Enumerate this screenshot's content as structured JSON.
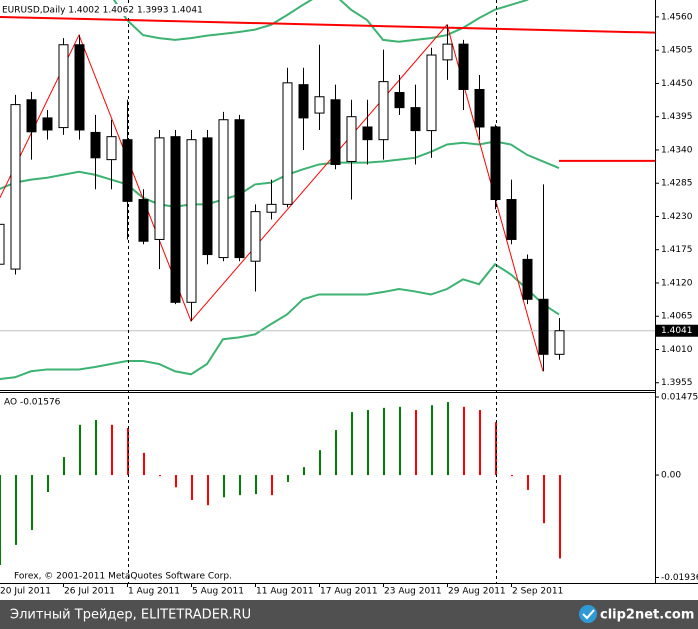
{
  "chart_data": [
    {
      "type": "candlestick",
      "title": "EURUSD,Daily  1.4002 1.4062 1.3993 1.4041",
      "open": [
        1.4151,
        1.4143,
        1.4423,
        1.4393,
        1.4377,
        1.4514,
        1.4369,
        1.4324,
        1.4357,
        1.4258,
        1.4192,
        1.4362,
        1.4088,
        1.436,
        1.4162,
        1.439,
        1.4156,
        1.4237,
        1.425,
        1.4448,
        1.4401,
        1.4423,
        1.4321,
        1.4378,
        1.4357,
        1.4435,
        1.441,
        1.4372,
        1.4489,
        1.4515,
        1.444,
        1.4378,
        1.4258,
        1.4159,
        1.4093,
        1.4002
      ],
      "high": [
        1.4242,
        1.4431,
        1.4436,
        1.4406,
        1.4525,
        1.453,
        1.4398,
        1.439,
        1.4423,
        1.4275,
        1.4373,
        1.4373,
        1.4373,
        1.4373,
        1.4403,
        1.4398,
        1.425,
        1.4291,
        1.4476,
        1.4476,
        1.4514,
        1.4448,
        1.4423,
        1.4423,
        1.4506,
        1.4464,
        1.4448,
        1.4509,
        1.4547,
        1.4522,
        1.4464,
        1.4382,
        1.4291,
        1.4167,
        1.4283,
        1.4062
      ],
      "low": [
        1.4126,
        1.4134,
        1.4324,
        1.4357,
        1.4365,
        1.4357,
        1.4275,
        1.4275,
        1.4192,
        1.4184,
        1.4143,
        1.4085,
        1.4057,
        1.4151,
        1.4156,
        1.4156,
        1.4106,
        1.4225,
        1.4245,
        1.434,
        1.4373,
        1.4308,
        1.4258,
        1.4316,
        1.4324,
        1.4398,
        1.4316,
        1.4327,
        1.4456,
        1.4406,
        1.4357,
        1.4242,
        1.4184,
        1.4085,
        1.3974,
        1.3993
      ],
      "close": [
        1.4217,
        1.4415,
        1.437,
        1.4373,
        1.4514,
        1.4373,
        1.4327,
        1.4362,
        1.4255,
        1.4189,
        1.436,
        1.4088,
        1.4357,
        1.4167,
        1.439,
        1.4162,
        1.4238,
        1.425,
        1.4451,
        1.4393,
        1.4428,
        1.4316,
        1.4395,
        1.4357,
        1.4453,
        1.441,
        1.4372,
        1.4497,
        1.4515,
        1.444,
        1.4378,
        1.4258,
        1.4192,
        1.4093,
        1.4002,
        1.4041
      ],
      "up_color": "#ffffff",
      "down_color": "#000000",
      "bands": [
        {
          "color": "#3cb371",
          "values": [
            1.4654,
            1.4654,
            1.4646,
            1.4638,
            1.4629,
            1.4621,
            1.4613,
            1.4596,
            1.4555,
            1.453,
            1.4525,
            1.4522,
            1.4525,
            1.4529,
            1.4532,
            1.4535,
            1.4539,
            1.4547,
            1.4563,
            1.458,
            1.4596,
            1.4596,
            1.4572,
            1.4555,
            1.4522,
            1.4519,
            1.4522,
            1.4525,
            1.453,
            1.4542,
            1.4558,
            1.4572,
            1.458,
            1.4588,
            1.4605,
            1.4613
          ]
        },
        {
          "color": "#3cb371",
          "values": [
            1.4275,
            1.4286,
            1.4291,
            1.4294,
            1.4299,
            1.4304,
            1.4299,
            1.4291,
            1.4283,
            1.4261,
            1.425,
            1.4246,
            1.425,
            1.425,
            1.4258,
            1.4266,
            1.4283,
            1.4286,
            1.4299,
            1.4308,
            1.4316,
            1.4319,
            1.4319,
            1.4319,
            1.4321,
            1.4324,
            1.4327,
            1.4337,
            1.4349,
            1.4352,
            1.4349,
            1.4354,
            1.4349,
            1.4332,
            1.4321,
            1.431
          ]
        },
        {
          "color": "#3cb371",
          "values": [
            1.3961,
            1.3964,
            1.3974,
            1.3977,
            1.3977,
            1.3977,
            1.3981,
            1.3986,
            1.3991,
            1.3991,
            1.3986,
            1.3974,
            1.3969,
            1.3986,
            1.4027,
            1.403,
            1.4035,
            1.4052,
            1.4068,
            1.4093,
            1.4101,
            1.4101,
            1.4101,
            1.4101,
            1.4105,
            1.411,
            1.4106,
            1.4101,
            1.411,
            1.4126,
            1.4118,
            1.4151,
            1.4134,
            1.411,
            1.4085,
            1.4068
          ]
        }
      ],
      "overlays": [
        {
          "color": "#ff0000",
          "x": [
            0,
            5,
            12,
            28,
            34
          ],
          "values": [
            1.4258,
            1.453,
            1.4057,
            1.4547,
            1.3974
          ]
        },
        {
          "color": "#ff0000",
          "x": [
            0,
            41
          ],
          "values": [
            1.456,
            1.4534
          ]
        },
        {
          "color": "#ff0000",
          "x": [
            35,
            41
          ],
          "values": [
            1.4322,
            1.4322
          ]
        }
      ],
      "last_price": 1.4041,
      "ylim": [
        1.3943,
        1.4588
      ],
      "yticks": [
        {
          "value": 1.456,
          "label": "1.4560"
        },
        1.4505,
        {
          "value": 1.445,
          "label": "1.4450"
        },
        1.4395,
        {
          "value": 1.434,
          "label": "1.4340"
        },
        1.4285,
        {
          "value": 1.423,
          "label": "1.4230"
        },
        1.4175,
        {
          "value": 1.412,
          "label": "1.4120"
        },
        1.4065,
        {
          "value": 1.401,
          "label": "1.4010"
        },
        1.3955
      ]
    },
    {
      "type": "bar",
      "title": "AO -0.01576",
      "annotation": "Forex, © 2001-2011 MetaQuotes Software Corp.",
      "categories": [
        "20 Jul 2011",
        null,
        null,
        null,
        "26 Jul 2011",
        null,
        null,
        null,
        "1 Aug 2011",
        null,
        null,
        null,
        "5 Aug 2011",
        null,
        null,
        null,
        "11 Aug 2011",
        null,
        null,
        null,
        "17 Aug 2011",
        null,
        null,
        null,
        "23 Aug 2011",
        null,
        null,
        null,
        "29 Aug 2011",
        null,
        null,
        null,
        "2 Sep 2011",
        null,
        null,
        null
      ],
      "values": [
        -0.017,
        -0.0132,
        -0.0104,
        -0.0032,
        0.0034,
        0.0095,
        0.0104,
        0.0095,
        0.0089,
        0.0042,
        -0.0002,
        -0.0023,
        -0.0047,
        -0.0057,
        -0.0042,
        -0.0038,
        -0.0036,
        -0.0038,
        -0.0013,
        0.0015,
        0.0047,
        0.0085,
        0.0119,
        0.0123,
        0.0127,
        0.0129,
        0.0123,
        0.0132,
        0.0138,
        0.0129,
        0.0123,
        0.01,
        -0.0002,
        -0.0028,
        -0.0091,
        -0.01576
      ],
      "up_color": "#008000",
      "down_color": "#ff0000",
      "ylim": [
        -0.0204,
        0.0157
      ],
      "yticks": [
        0.01475,
        {
          "value": 0,
          "label": "0.00"
        },
        -0.01936
      ]
    }
  ],
  "footer": {
    "text": "Элитный Трейдер, ELITETRADER.RU",
    "logo": "clip2net.com"
  }
}
